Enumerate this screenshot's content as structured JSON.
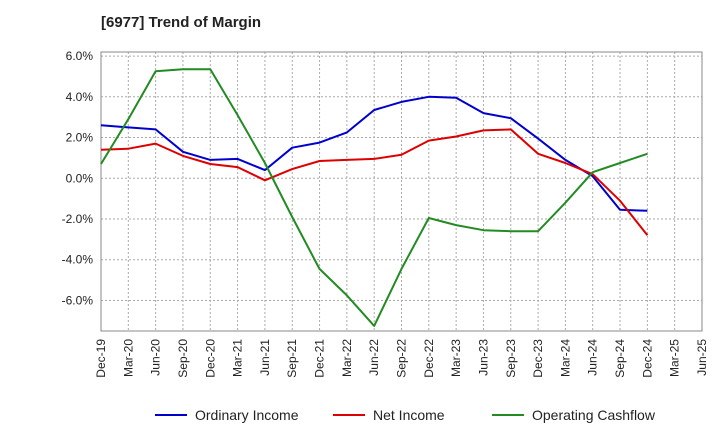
{
  "chart_data": {
    "type": "line",
    "title": "[6977]  Trend of Margin",
    "xlabel": "",
    "ylabel": "",
    "categories": [
      "Dec-19",
      "Mar-20",
      "Jun-20",
      "Sep-20",
      "Dec-20",
      "Mar-21",
      "Jun-21",
      "Sep-21",
      "Dec-21",
      "Mar-22",
      "Jun-22",
      "Sep-22",
      "Dec-22",
      "Mar-23",
      "Jun-23",
      "Sep-23",
      "Dec-23",
      "Mar-24",
      "Jun-24",
      "Sep-24",
      "Dec-24",
      "Mar-25",
      "Jun-25"
    ],
    "y_ticks": [
      "6.0%",
      "4.0%",
      "2.0%",
      "0.0%",
      "-2.0%",
      "-4.0%",
      "-6.0%"
    ],
    "y_tick_values": [
      6,
      4,
      2,
      0,
      -2,
      -4,
      -6
    ],
    "ylim": [
      -7.5,
      6.2
    ],
    "grid": true,
    "legend_position": "bottom",
    "series": [
      {
        "name": "Ordinary Income",
        "color": "#0000cc",
        "values": [
          2.6,
          2.5,
          2.4,
          1.3,
          0.9,
          0.95,
          0.4,
          1.5,
          1.75,
          2.25,
          3.35,
          3.75,
          4.0,
          3.95,
          3.2,
          2.95,
          1.95,
          0.9,
          0.1,
          -1.55,
          -1.6,
          null,
          null
        ]
      },
      {
        "name": "Net Income",
        "color": "#dd0000",
        "values": [
          1.4,
          1.45,
          1.7,
          1.1,
          0.7,
          0.55,
          -0.1,
          0.45,
          0.85,
          0.9,
          0.95,
          1.15,
          1.85,
          2.05,
          2.35,
          2.4,
          1.2,
          0.75,
          0.2,
          -1.1,
          -2.8,
          null,
          null
        ]
      },
      {
        "name": "Operating Cashflow",
        "color": "#228b22",
        "values": [
          0.7,
          2.9,
          5.25,
          5.35,
          5.35,
          3.1,
          0.75,
          -1.9,
          -4.45,
          -5.75,
          -7.25,
          -4.45,
          -1.95,
          -2.3,
          -2.55,
          -2.6,
          -2.6,
          -1.2,
          0.3,
          0.75,
          1.2,
          null,
          null
        ]
      }
    ]
  }
}
